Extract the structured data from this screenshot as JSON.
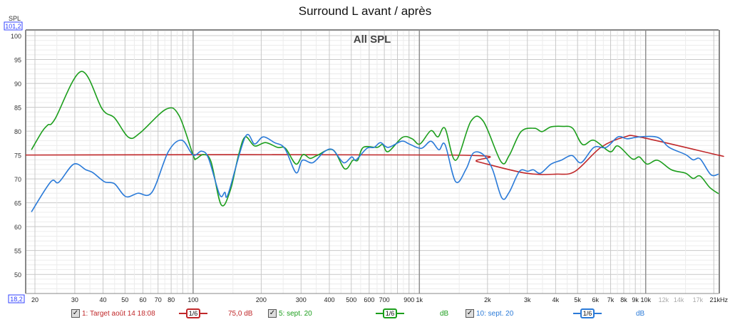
{
  "title": "Surround L avant / après",
  "chart_data": {
    "type": "line",
    "title": "All SPL",
    "ylabel": "SPL",
    "x_unit": "kHz",
    "x_scale": "log",
    "xlim": [
      18.2,
      21000
    ],
    "ylim": [
      46,
      101.2
    ],
    "xlim_min_label": "18,2",
    "ylim_max_label": "101,2",
    "grid": true,
    "y_ticks": [
      50,
      55,
      60,
      65,
      70,
      75,
      80,
      85,
      90,
      95,
      100
    ],
    "x_ticks": [
      {
        "f": 20,
        "label": "20"
      },
      {
        "f": 30,
        "label": "30"
      },
      {
        "f": 40,
        "label": "40"
      },
      {
        "f": 50,
        "label": "50"
      },
      {
        "f": 60,
        "label": "60"
      },
      {
        "f": 70,
        "label": "70"
      },
      {
        "f": 80,
        "label": "80"
      },
      {
        "f": 100,
        "label": "100"
      },
      {
        "f": 200,
        "label": "200"
      },
      {
        "f": 300,
        "label": "300"
      },
      {
        "f": 400,
        "label": "400"
      },
      {
        "f": 500,
        "label": "500"
      },
      {
        "f": 600,
        "label": "600"
      },
      {
        "f": 700,
        "label": "700"
      },
      {
        "f": 900,
        "label": "900"
      },
      {
        "f": 1000,
        "label": "1k"
      },
      {
        "f": 2000,
        "label": "2k"
      },
      {
        "f": 3000,
        "label": "3k"
      },
      {
        "f": 4000,
        "label": "4k"
      },
      {
        "f": 5000,
        "label": "5k"
      },
      {
        "f": 6000,
        "label": "6k"
      },
      {
        "f": 7000,
        "label": "7k"
      },
      {
        "f": 8000,
        "label": "8k"
      },
      {
        "f": 9000,
        "label": "9k"
      },
      {
        "f": 10000,
        "label": "10k"
      },
      {
        "f": 12000,
        "label": "12k",
        "muted": true
      },
      {
        "f": 14000,
        "label": "14k",
        "muted": true
      },
      {
        "f": 17000,
        "label": "17k",
        "muted": true
      },
      {
        "f": 21000,
        "label": "21kHz"
      }
    ],
    "series": [
      {
        "name": "1: Target août 14 18:08",
        "color": "#c0282a",
        "smoothing": "1/6",
        "value_label": "75,0 dB",
        "points": [
          [
            18.2,
            75
          ],
          [
            1400,
            75
          ],
          [
            1810,
            73.6
          ],
          [
            2950,
            71.2
          ],
          [
            4020,
            71.0
          ],
          [
            4880,
            71.6
          ],
          [
            6340,
            76.6
          ],
          [
            8100,
            78.8
          ],
          [
            9580,
            78.7
          ],
          [
            20800,
            75.0
          ],
          [
            21000,
            75.0
          ]
        ]
      },
      {
        "name": "5: sept. 20",
        "color": "#1c9e1c",
        "smoothing": "1/6",
        "value_label": "dB",
        "points": [
          [
            19.3,
            76.1
          ],
          [
            21.5,
            79.9
          ],
          [
            22.8,
            81.3
          ],
          [
            24.5,
            82.5
          ],
          [
            32,
            92.5
          ],
          [
            39.7,
            84.6
          ],
          [
            44.9,
            82.8
          ],
          [
            51.9,
            78.7
          ],
          [
            58.2,
            79.6
          ],
          [
            76,
            84.6
          ],
          [
            86.6,
            83.3
          ],
          [
            100,
            75
          ],
          [
            103,
            74.2
          ],
          [
            111,
            75.1
          ],
          [
            120,
            73.6
          ],
          [
            133,
            64.6
          ],
          [
            146,
            67.6
          ],
          [
            159,
            75.1
          ],
          [
            170,
            78.8
          ],
          [
            187,
            76.9
          ],
          [
            209,
            77.6
          ],
          [
            236,
            76.6
          ],
          [
            256,
            76.4
          ],
          [
            285,
            73.1
          ],
          [
            306,
            75.1
          ],
          [
            329,
            74.3
          ],
          [
            353,
            74.9
          ],
          [
            414,
            76.1
          ],
          [
            468,
            72.1
          ],
          [
            508,
            73.9
          ],
          [
            534,
            73.9
          ],
          [
            565,
            76.6
          ],
          [
            650,
            76.6
          ],
          [
            688,
            77.2
          ],
          [
            728,
            75.7
          ],
          [
            842,
            78.7
          ],
          [
            929,
            78.4
          ],
          [
            1005,
            77.3
          ],
          [
            1124,
            80.1
          ],
          [
            1207,
            78.8
          ],
          [
            1298,
            80.6
          ],
          [
            1447,
            73.9
          ],
          [
            1690,
            82.1
          ],
          [
            1915,
            82.1
          ],
          [
            2295,
            73.6
          ],
          [
            2493,
            74.9
          ],
          [
            2813,
            79.9
          ],
          [
            3230,
            80.6
          ],
          [
            3478,
            79.9
          ],
          [
            3819,
            80.9
          ],
          [
            4317,
            81.0
          ],
          [
            4759,
            80.6
          ],
          [
            5264,
            77.2
          ],
          [
            5906,
            78.1
          ],
          [
            6950,
            75.7
          ],
          [
            7546,
            76.9
          ],
          [
            8720,
            74.2
          ],
          [
            9370,
            74.6
          ],
          [
            10150,
            73.1
          ],
          [
            11300,
            73.9
          ],
          [
            13000,
            71.9
          ],
          [
            15000,
            71.2
          ],
          [
            16200,
            70.1
          ],
          [
            17400,
            70.6
          ],
          [
            19200,
            68.2
          ],
          [
            21000,
            66.9
          ]
        ]
      },
      {
        "name": "10: sept. 20",
        "color": "#2a7ad8",
        "smoothing": "1/6",
        "value_label": "dB",
        "points": [
          [
            19.3,
            63.1
          ],
          [
            23.5,
            69.4
          ],
          [
            25.5,
            69.3
          ],
          [
            29.7,
            73.1
          ],
          [
            33.6,
            71.9
          ],
          [
            36.1,
            71.3
          ],
          [
            40.6,
            69.4
          ],
          [
            44.9,
            69.0
          ],
          [
            50.4,
            66.3
          ],
          [
            57,
            67.0
          ],
          [
            65.8,
            67.2
          ],
          [
            77.7,
            75.7
          ],
          [
            89.1,
            78.1
          ],
          [
            100,
            75
          ],
          [
            109,
            75.8
          ],
          [
            117,
            74.3
          ],
          [
            131,
            66.7
          ],
          [
            138,
            67.2
          ],
          [
            143,
            66.9
          ],
          [
            170,
            78.8
          ],
          [
            187,
            77.3
          ],
          [
            204,
            78.8
          ],
          [
            229,
            77.6
          ],
          [
            254,
            76.4
          ],
          [
            285,
            71.3
          ],
          [
            304,
            73.9
          ],
          [
            338,
            73.4
          ],
          [
            380,
            75.7
          ],
          [
            414,
            76.1
          ],
          [
            462,
            73.4
          ],
          [
            502,
            74.6
          ],
          [
            525,
            74.0
          ],
          [
            586,
            76.4
          ],
          [
            631,
            76.6
          ],
          [
            673,
            77.6
          ],
          [
            728,
            76.6
          ],
          [
            835,
            77.9
          ],
          [
            903,
            77.3
          ],
          [
            1020,
            76.4
          ],
          [
            1124,
            77.9
          ],
          [
            1220,
            76.1
          ],
          [
            1298,
            77.2
          ],
          [
            1447,
            69.4
          ],
          [
            1610,
            72.1
          ],
          [
            1730,
            75.4
          ],
          [
            1915,
            75.1
          ],
          [
            2100,
            72.1
          ],
          [
            2316,
            66.0
          ],
          [
            2493,
            67.2
          ],
          [
            2770,
            71.6
          ],
          [
            3011,
            71.6
          ],
          [
            3189,
            71.9
          ],
          [
            3430,
            71.2
          ],
          [
            3819,
            73.1
          ],
          [
            4224,
            73.9
          ],
          [
            4723,
            74.9
          ],
          [
            5188,
            73.4
          ],
          [
            5906,
            76.6
          ],
          [
            6693,
            76.6
          ],
          [
            7546,
            78.8
          ],
          [
            8290,
            78.4
          ],
          [
            9370,
            78.8
          ],
          [
            11300,
            78.7
          ],
          [
            12700,
            76.6
          ],
          [
            15000,
            75.1
          ],
          [
            16200,
            74.0
          ],
          [
            17400,
            74.2
          ],
          [
            19400,
            70.9
          ],
          [
            21000,
            71.0
          ]
        ]
      }
    ]
  },
  "legend": {
    "checkbox_mark": "✓"
  }
}
